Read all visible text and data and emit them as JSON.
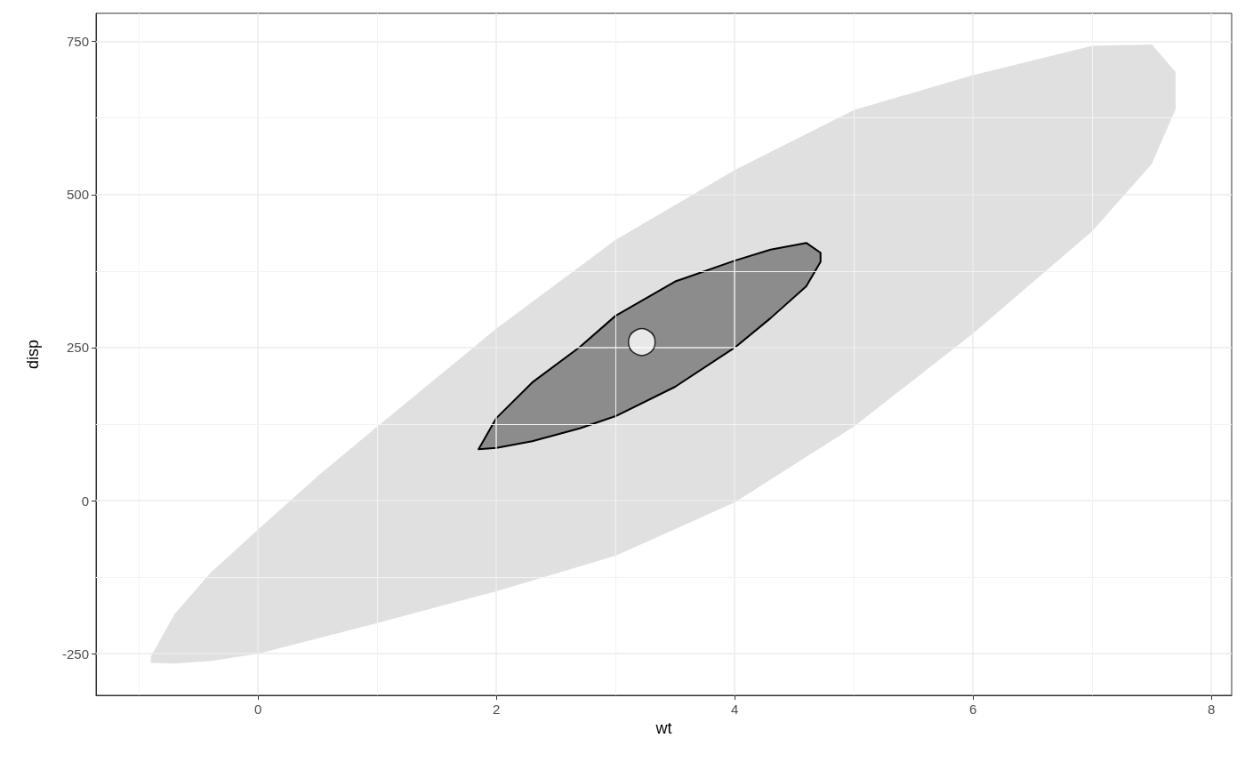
{
  "chart_data": {
    "type": "area",
    "xlabel": "wt",
    "ylabel": "disp",
    "xlim": [
      -1.36,
      8.17
    ],
    "ylim": [
      -318,
      796
    ],
    "xticks": [
      0,
      2,
      4,
      6,
      8
    ],
    "yticks": [
      -250,
      0,
      250,
      500,
      750
    ],
    "grid": true,
    "series": [
      {
        "color": "#e0e0e0",
        "x": [
          -0.9,
          -0.7,
          -0.4,
          0,
          0.5,
          1,
          2,
          3,
          4,
          5,
          6,
          7,
          7.5,
          7.7,
          7.7,
          7.5,
          7,
          6,
          5,
          4,
          3,
          2,
          1,
          0.5,
          0,
          -0.4,
          -0.7,
          -0.9
        ],
        "values": [
          -255,
          -185,
          -118,
          -47,
          40,
          121,
          281,
          426,
          540,
          638,
          695,
          743,
          745,
          700,
          640,
          550,
          440,
          273,
          121,
          -3,
          -90,
          -148,
          -200,
          -225,
          -250,
          -262,
          -266,
          -265
        ]
      },
      {
        "color": "#8c8c8c",
        "line_style": "solid",
        "x": [
          1.85,
          2.0,
          2.3,
          2.7,
          3.0,
          3.5,
          4.0,
          4.3,
          4.6,
          4.72,
          4.72,
          4.6,
          4.3,
          4.0,
          3.5,
          3.0,
          2.7,
          2.3,
          2.0,
          1.85
        ],
        "values": [
          84,
          135,
          193,
          251,
          302,
          358,
          392,
          410,
          421,
          405,
          390,
          350,
          298,
          250,
          186,
          138,
          118,
          97,
          86,
          84
        ]
      },
      {
        "type": "scatter",
        "color": "#ffffff",
        "marker": "circle",
        "x": [
          3.22
        ],
        "values": [
          259
        ]
      }
    ]
  }
}
